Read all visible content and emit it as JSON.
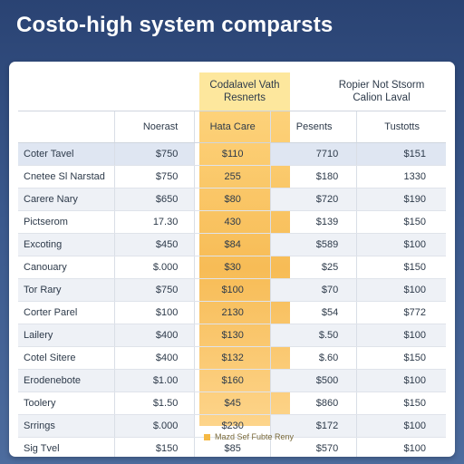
{
  "title": "Costo-high system comparsts",
  "top_headers": {
    "left": [
      "Codalavel Vath",
      "Resnerts"
    ],
    "right": [
      "Ropier Not Stsorm",
      "Calion Laval"
    ]
  },
  "columns": [
    "",
    "Noerast",
    "Hata Care",
    "Pesents",
    "Tustotts"
  ],
  "rows": [
    [
      "Coter Tavel",
      "$750",
      "$110",
      "7710",
      "$151"
    ],
    [
      "Cnetee Sl Narstad",
      "$750",
      "255",
      "$180",
      "1330"
    ],
    [
      "Carere Nary",
      "$650",
      "$80",
      "$720",
      "$190"
    ],
    [
      "Pictserom",
      "17.30",
      "430",
      "$139",
      "$150"
    ],
    [
      "Excoting",
      "$450",
      "$84",
      "$589",
      "$100"
    ],
    [
      "Canouary",
      "$.000",
      "$30",
      "$25",
      "$150"
    ],
    [
      "Tor Rary",
      "$750",
      "$100",
      "$70",
      "$100"
    ],
    [
      "Corter Parel",
      "$100",
      "2130",
      "$54",
      "$772"
    ],
    [
      "Lailery",
      "$400",
      "$130",
      "$.50",
      "$100"
    ],
    [
      "Cotel Sitere",
      "$400",
      "$132",
      "$.60",
      "$150"
    ],
    [
      "Erodenebote",
      "$1.00",
      "$160",
      "$500",
      "$100"
    ],
    [
      "Toolery",
      "$1.50",
      "$45",
      "$860",
      "$150"
    ],
    [
      "Srrings",
      "$.000",
      "$230",
      "$172",
      "$100"
    ],
    [
      "Sig Tvel",
      "$150",
      "$85",
      "$570",
      "$100"
    ]
  ],
  "legend": "Mazd Sef Fubte Reny",
  "colors": {
    "background": "#2f4b7d",
    "highlight": "#f7bc56",
    "highlight_light": "#fde79d",
    "row_alt": "#eef1f6"
  }
}
